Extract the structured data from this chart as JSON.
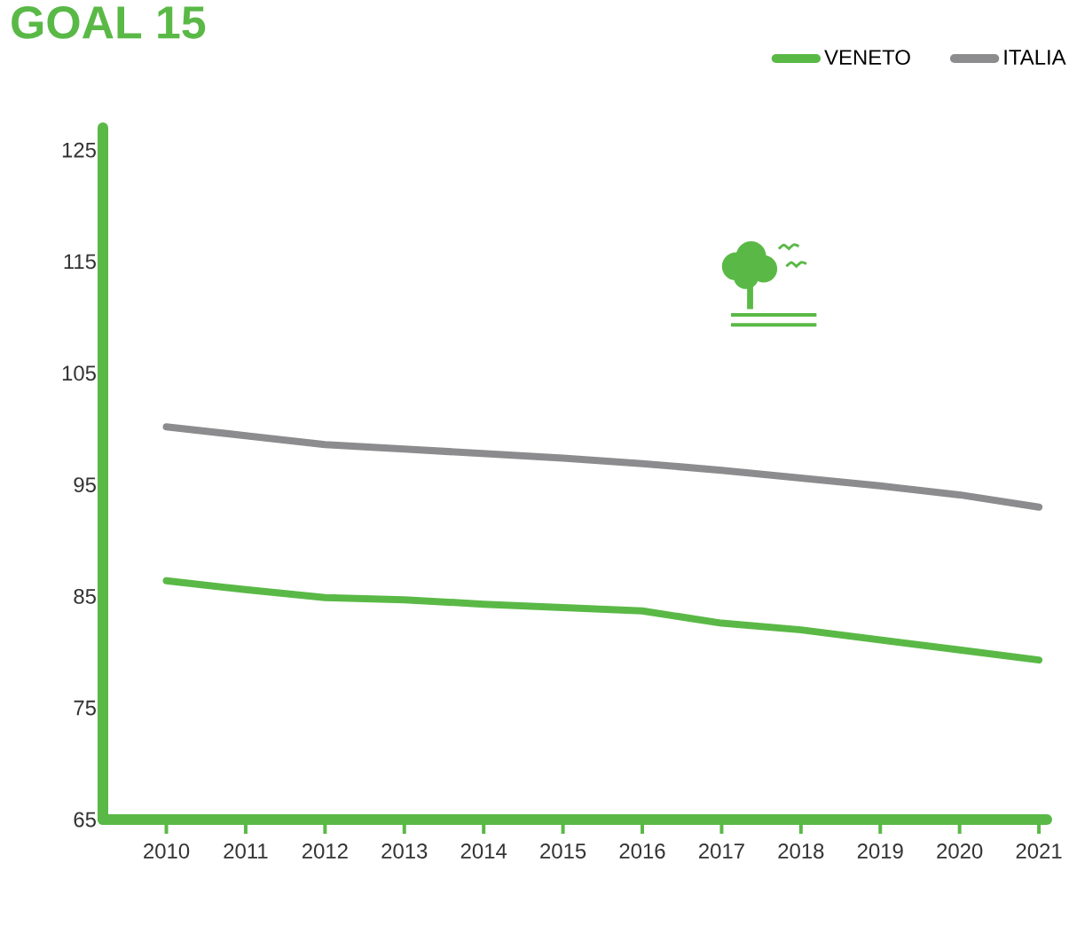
{
  "chart_data": {
    "type": "line",
    "title": "GOAL 15",
    "x": [
      2010,
      2011,
      2012,
      2013,
      2014,
      2015,
      2016,
      2017,
      2018,
      2019,
      2020,
      2021
    ],
    "series": [
      {
        "name": "VENETO",
        "color": "#5ab946",
        "values": [
          86.4,
          85.6,
          84.9,
          84.7,
          84.3,
          84.0,
          83.7,
          82.6,
          82.0,
          81.1,
          80.2,
          79.3
        ]
      },
      {
        "name": "ITALIA",
        "color": "#8c8c8e",
        "values": [
          100.2,
          99.4,
          98.6,
          98.2,
          97.8,
          97.4,
          96.9,
          96.3,
          95.6,
          94.9,
          94.1,
          93.0
        ]
      }
    ],
    "xlim": [
      2009.2,
      2021.1
    ],
    "ylim": [
      65,
      127
    ],
    "xticks": [
      2010,
      2011,
      2012,
      2013,
      2014,
      2015,
      2016,
      2017,
      2018,
      2019,
      2020,
      2021
    ],
    "yticks": [
      65,
      75,
      85,
      95,
      105,
      115,
      125
    ],
    "grid": false,
    "legend": "top right",
    "marker": "none",
    "line_style": "solid"
  }
}
